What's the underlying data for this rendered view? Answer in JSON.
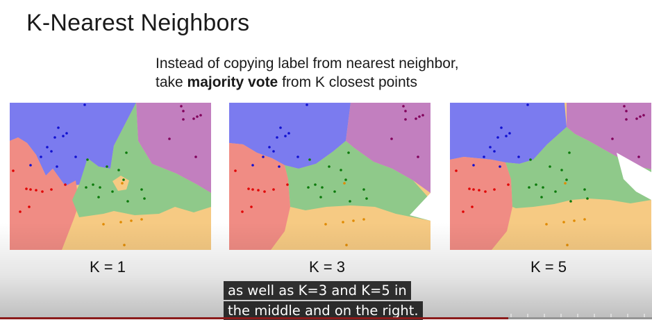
{
  "slide": {
    "title": "K-Nearest Neighbors",
    "subtitle_line1": "Instead of copying label from nearest neighbor,",
    "subtitle_line2_pre": "take ",
    "subtitle_line2_bold": "majority vote",
    "subtitle_line2_post": " from K closest points",
    "panels": [
      {
        "label": "K = 1"
      },
      {
        "label": "K = 3"
      },
      {
        "label": "K = 5"
      }
    ],
    "colors": {
      "blue_region": "#7b7bef",
      "red_region": "#f08c84",
      "green_region": "#8fc98a",
      "purple_region": "#c27fbf",
      "orange_region": "#f6ca83",
      "blue_point": "#1010d0",
      "red_point": "#e00000",
      "green_point": "#0b7a0b",
      "purple_point": "#80005a",
      "orange_point": "#e08a00"
    }
  },
  "player": {
    "captions": [
      "as well as K=3 and K=5 in",
      "the middle and on the right."
    ],
    "progress": 0.78,
    "accent_color": "#8b1a1a"
  }
}
